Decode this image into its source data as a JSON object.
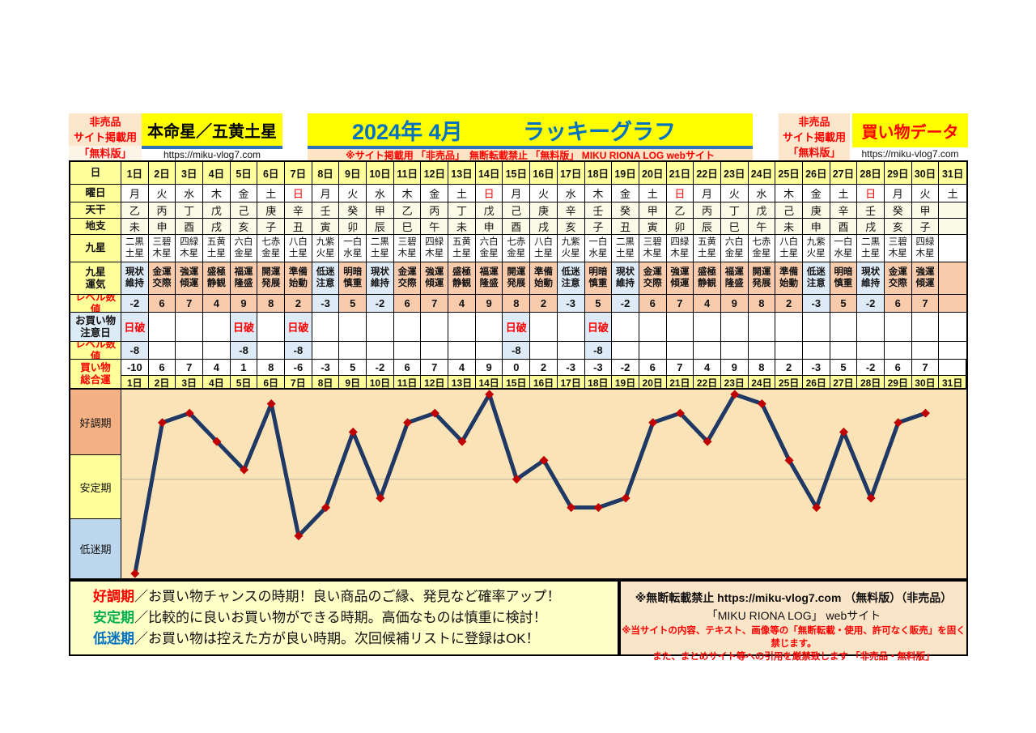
{
  "header": {
    "left_note": {
      "line1": "非売品",
      "line2": "サイト掲載用",
      "line3": "「無料版」"
    },
    "honmeisei": {
      "title": "本命星／五黄土星",
      "url": "https://miku-vlog7.com"
    },
    "main": {
      "year_month": "2024年 4月",
      "title": "ラッキーグラフ",
      "subtitle": "※サイト掲載用 「非売品」　無断転載禁止 「無料版」 MIKU RIONA LOG  webサイト"
    },
    "right_note": {
      "line1": "非売品",
      "line2": "サイト掲載用",
      "line3": "「無料版」"
    },
    "kaimono": {
      "title": "買い物データ",
      "url": "https://miku-vlog7.com"
    }
  },
  "table": {
    "labels": {
      "day": "日",
      "youbi": "曜日",
      "tenkan": "天干",
      "chishi": "地支",
      "kyusei": "九星",
      "unki": "九星\n運気",
      "level": "レベル数値",
      "chui": "お買い物\n注意日",
      "total": "買い物\n総合運"
    },
    "days": [
      "1日",
      "2日",
      "3日",
      "4日",
      "5日",
      "6日",
      "7日",
      "8日",
      "9日",
      "10日",
      "11日",
      "12日",
      "13日",
      "14日",
      "15日",
      "16日",
      "17日",
      "18日",
      "19日",
      "20日",
      "21日",
      "22日",
      "23日",
      "24日",
      "25日",
      "26日",
      "27日",
      "28日",
      "29日",
      "30日",
      "31日"
    ],
    "youbi": [
      "月",
      "火",
      "水",
      "木",
      "金",
      "土",
      "日",
      "月",
      "火",
      "水",
      "木",
      "金",
      "土",
      "日",
      "月",
      "火",
      "水",
      "木",
      "金",
      "土",
      "日",
      "月",
      "火",
      "水",
      "木",
      "金",
      "土",
      "日",
      "月",
      "火",
      "土"
    ],
    "tenkan": [
      "乙",
      "丙",
      "丁",
      "戊",
      "己",
      "庚",
      "辛",
      "壬",
      "癸",
      "甲",
      "乙",
      "丙",
      "丁",
      "戊",
      "己",
      "庚",
      "辛",
      "壬",
      "癸",
      "甲",
      "乙",
      "丙",
      "丁",
      "戊",
      "己",
      "庚",
      "辛",
      "壬",
      "癸",
      "甲",
      ""
    ],
    "chishi": [
      "未",
      "申",
      "酉",
      "戌",
      "亥",
      "子",
      "丑",
      "寅",
      "卯",
      "辰",
      "巳",
      "午",
      "未",
      "申",
      "酉",
      "戌",
      "亥",
      "子",
      "丑",
      "寅",
      "卯",
      "辰",
      "巳",
      "午",
      "未",
      "申",
      "酉",
      "戌",
      "亥",
      "子",
      ""
    ],
    "kyusei": [
      "二黒\n土星",
      "三碧\n木星",
      "四緑\n木星",
      "五黄\n土星",
      "六白\n金星",
      "七赤\n金星",
      "八白\n土星",
      "九紫\n火星",
      "一白\n水星",
      "二黒\n土星",
      "三碧\n木星",
      "四緑\n木星",
      "五黄\n土星",
      "六白\n金星",
      "七赤\n金星",
      "八白\n土星",
      "九紫\n火星",
      "一白\n水星",
      "二黒\n土星",
      "三碧\n木星",
      "四緑\n木星",
      "五黄\n土星",
      "六白\n金星",
      "七赤\n金星",
      "八白\n土星",
      "九紫\n火星",
      "一白\n水星",
      "二黒\n土星",
      "三碧\n木星",
      "四緑\n木星",
      ""
    ],
    "unki": [
      "現状\n維持",
      "金運\n交際",
      "強運\n傾運",
      "盛極\n静観",
      "福運\n隆盛",
      "開運\n発展",
      "準備\n始動",
      "低迷\n注意",
      "明暗\n慎重",
      "現状\n維持",
      "金運\n交際",
      "強運\n傾運",
      "盛極\n静観",
      "福運\n隆盛",
      "開運\n発展",
      "準備\n始動",
      "低迷\n注意",
      "明暗\n慎重",
      "現状\n維持",
      "金運\n交際",
      "強運\n傾運",
      "盛極\n静観",
      "福運\n隆盛",
      "開運\n発展",
      "準備\n始動",
      "低迷\n注意",
      "明暗\n慎重",
      "現状\n維持",
      "金運\n交際",
      "強運\n傾運",
      ""
    ],
    "level1": [
      -2,
      6,
      7,
      4,
      9,
      8,
      2,
      -3,
      5,
      -2,
      6,
      7,
      4,
      9,
      8,
      2,
      -3,
      5,
      -2,
      6,
      7,
      4,
      9,
      8,
      2,
      -3,
      5,
      -2,
      6,
      7,
      ""
    ],
    "chui": [
      "日破",
      "",
      "",
      "",
      "日破",
      "",
      "日破",
      "",
      "",
      "",
      "",
      "",
      "",
      "",
      "日破",
      "",
      "",
      "日破",
      "",
      "",
      "",
      "",
      "",
      "",
      "",
      "",
      "",
      "",
      "",
      "",
      ""
    ],
    "level2": [
      "-8",
      "",
      "",
      "",
      "-8",
      "",
      "-8",
      "",
      "",
      "",
      "",
      "",
      "",
      "",
      "-8",
      "",
      "",
      "-8",
      "",
      "",
      "",
      "",
      "",
      "",
      "",
      "",
      "",
      "",
      "",
      "",
      ""
    ],
    "total": [
      -10,
      6,
      7,
      4,
      1,
      8,
      -6,
      -3,
      5,
      -2,
      6,
      7,
      4,
      9,
      0,
      2,
      -3,
      -3,
      -2,
      6,
      7,
      4,
      9,
      8,
      2,
      -3,
      5,
      -2,
      6,
      7,
      ""
    ]
  },
  "chart_data": {
    "type": "line",
    "title": "ラッキーグラフ 2024年4月 買い物総合運",
    "x_days": [
      1,
      2,
      3,
      4,
      5,
      6,
      7,
      8,
      9,
      10,
      11,
      12,
      13,
      14,
      15,
      16,
      17,
      18,
      19,
      20,
      21,
      22,
      23,
      24,
      25,
      26,
      27,
      28,
      29,
      30
    ],
    "values": [
      -10,
      6,
      7,
      4,
      1,
      8,
      -6,
      -3,
      5,
      -2,
      6,
      7,
      4,
      9,
      0,
      2,
      -3,
      -3,
      -2,
      6,
      7,
      4,
      9,
      8,
      2,
      -3,
      5,
      -2,
      6,
      7
    ],
    "ylim": [
      -10.5,
      9.5
    ],
    "gridline_at": 0,
    "bands": [
      {
        "label": "好調期",
        "range": "約+3以上",
        "color": "#F4B183"
      },
      {
        "label": "安定期",
        "range": "約-4〜+3",
        "color": "#FFFF99"
      },
      {
        "label": "低迷期",
        "range": "約-4以下",
        "color": "#BDD7EE"
      }
    ],
    "line_color": "#1F3864",
    "marker_color": "#C00000",
    "marker": "diamond",
    "bg_color": "#FBE3B8",
    "grid_color": "#BFB49E",
    "legend_position": "left"
  },
  "legend": {
    "items": [
      {
        "term": "好調期",
        "color": "#FF0000",
        "desc": "／お買い物チャンスの時期！良い商品のご縁、発見など確率アップ！"
      },
      {
        "term": "安定期",
        "color": "#00B050",
        "desc": "／比較的に良いお買い物ができる時期。高価なものは慎重に検討！"
      },
      {
        "term": "低迷期",
        "color": "#0070C0",
        "desc": "／お買い物は控えた方が良い時期。次回候補リストに登録はOK！"
      }
    ]
  },
  "notice": {
    "line1": "※無断転載禁止  https://miku-vlog7.com （無料版）（非売品）",
    "line2": "「MIKU RIONA LOG」 webサイト",
    "line3": "※当サイトの内容、テキスト、画像等の「無断転載・使用、許可なく販売」を固く禁じます。",
    "line4": "また、まとめサイト等への引用を厳禁致します 「非売品・無料版」"
  },
  "colors": {
    "title_blue": "#0070C0",
    "accent_red": "#FF0000",
    "cell_peach": "#F8CBAD",
    "cell_blue": "#DEEBF7",
    "header_yellow": "#FFFF9C",
    "bright_yellow": "#FFFF00",
    "note_peach": "#FCE7CC",
    "line_navy": "#1F3864",
    "marker_red": "#C00000",
    "chart_bg": "#FBE3B8"
  }
}
